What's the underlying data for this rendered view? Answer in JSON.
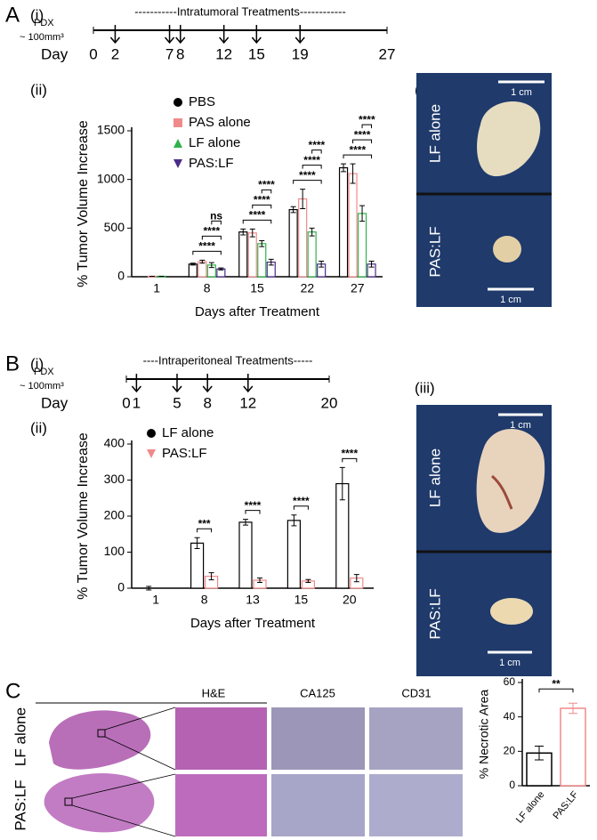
{
  "panels": {
    "a": "A",
    "b": "B",
    "c": "C",
    "i": "(i)",
    "ii": "(ii)",
    "iii": "(iii)"
  },
  "timeline_a": {
    "title": "-----------Intratumoral Treatments------------",
    "pdx": "PDX",
    "volume": "~ 100mm³",
    "day_label": "Day",
    "days": [
      0,
      2,
      7,
      8,
      12,
      15,
      19,
      27
    ],
    "treatments": [
      2,
      7,
      8,
      12,
      15,
      19
    ],
    "range": [
      0,
      27
    ]
  },
  "timeline_b": {
    "title": "----Intraperitoneal Treatments-----",
    "pdx": "PDX",
    "volume": "~ 100mm³",
    "day_label": "Day",
    "days": [
      0,
      1,
      5,
      8,
      12,
      20
    ],
    "treatments": [
      1,
      5,
      8,
      12
    ],
    "range": [
      0,
      20
    ]
  },
  "photos_a": {
    "scale": "1 cm",
    "labels": [
      "LF alone",
      "PAS:LF"
    ]
  },
  "photos_b": {
    "scale": "1 cm",
    "labels": [
      "LF alone",
      "PAS:LF"
    ]
  },
  "histology": {
    "stains": [
      "H&E",
      "CA125",
      "CD31"
    ],
    "rows": [
      "LF alone",
      "PAS:LF"
    ]
  },
  "chart_data": [
    {
      "type": "bar",
      "ylabel": "% Tumor Volume Increase",
      "xlabel": "Days after Treatment",
      "categories": [
        "1",
        "8",
        "15",
        "22",
        "27"
      ],
      "series": [
        {
          "name": "PBS",
          "color": "#000000",
          "marker": "circle",
          "values": [
            0,
            130,
            460,
            690,
            1120
          ],
          "errors": [
            0,
            10,
            30,
            30,
            40
          ]
        },
        {
          "name": "PAS alone",
          "color": "#f08a8a",
          "marker": "square",
          "values": [
            5,
            155,
            450,
            800,
            1060
          ],
          "errors": [
            0,
            15,
            40,
            100,
            100
          ]
        },
        {
          "name": "LF alone",
          "color": "#2fb34c",
          "marker": "triangle-up",
          "values": [
            5,
            120,
            340,
            460,
            650
          ],
          "errors": [
            0,
            25,
            30,
            40,
            80
          ]
        },
        {
          "name": "PAS:LF",
          "color": "#4b2c8a",
          "marker": "triangle-down",
          "values": [
            0,
            80,
            150,
            130,
            130
          ],
          "errors": [
            0,
            10,
            30,
            30,
            30
          ]
        }
      ],
      "significance": [
        null,
        [
          "****",
          "****",
          "ns"
        ],
        [
          "****",
          "****",
          "****"
        ],
        [
          "****",
          "****",
          "****"
        ],
        [
          "****",
          "****",
          "****"
        ]
      ],
      "ylim": [
        0,
        1500
      ],
      "yticks": [
        0,
        500,
        1000,
        1500
      ]
    },
    {
      "type": "bar",
      "ylabel": "% Tumor Volume Increase",
      "xlabel": "Days after Treatment",
      "categories": [
        "1",
        "8",
        "13",
        "15",
        "20"
      ],
      "series": [
        {
          "name": "LF alone",
          "color": "#000000",
          "marker": "circle",
          "values": [
            0,
            125,
            183,
            188,
            290
          ],
          "errors": [
            5,
            15,
            8,
            15,
            45
          ]
        },
        {
          "name": "PAS:LF",
          "color": "#f08a8a",
          "marker": "triangle-down",
          "values": [
            0,
            33,
            22,
            20,
            28
          ],
          "errors": [
            0,
            10,
            6,
            4,
            10
          ]
        }
      ],
      "significance": [
        null,
        [
          "***"
        ],
        [
          "****"
        ],
        [
          "****"
        ],
        [
          "****"
        ]
      ],
      "ylim": [
        0,
        400
      ],
      "yticks": [
        0,
        100,
        200,
        300,
        400
      ]
    },
    {
      "type": "column",
      "ylabel": "% Necrotic Area",
      "categories": [
        "LF alone",
        "PAS:LF"
      ],
      "values": [
        19,
        45
      ],
      "errors": [
        4,
        3
      ],
      "colors": [
        "#000000",
        "#f08a8a"
      ],
      "significance": "**",
      "ylim": [
        0,
        60
      ],
      "yticks": [
        0,
        20,
        40,
        60
      ]
    }
  ]
}
